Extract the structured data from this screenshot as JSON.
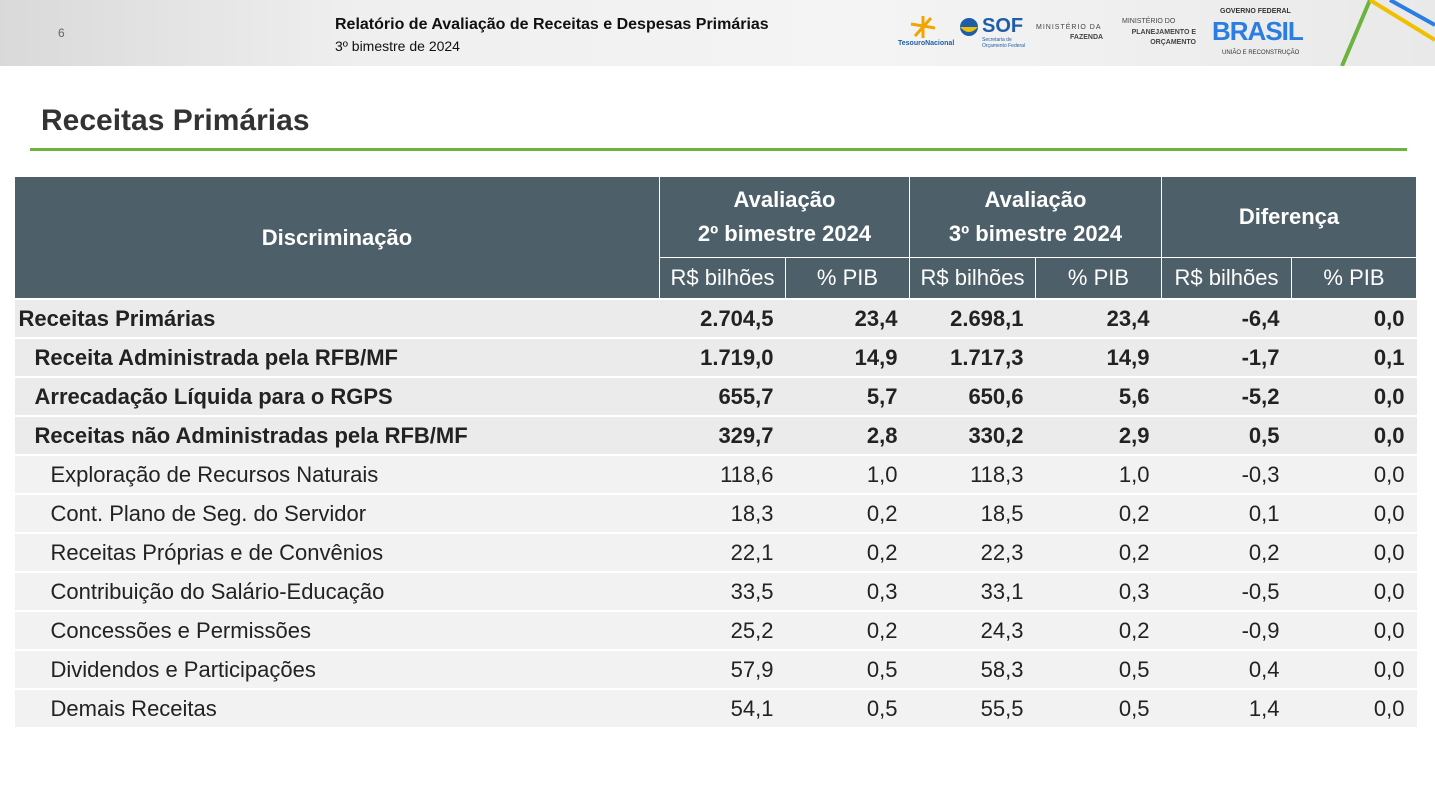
{
  "header": {
    "page_number": "6",
    "title": "Relatório de Avaliação de Receitas e Despesas Primárias",
    "subtitle": "3º bimestre de 2024",
    "logos": {
      "tesouro": "TesouroNacional",
      "sof": "SOF",
      "sof_sub": "Secretaria de Orçamento Federal",
      "fazenda_1": "MINISTÉRIO DA",
      "fazenda_2": "FAZENDA",
      "planejamento_1": "MINISTÉRIO DO",
      "planejamento_2": "PLANEJAMENTO E ORÇAMENTO",
      "governo": "GOVERNO FEDERAL",
      "brasil": "BRASIL",
      "uniao": "UNIÃO E RECONSTRUÇÃO"
    }
  },
  "section_title": "Receitas Primárias",
  "table": {
    "header": {
      "discriminacao": "Discriminação",
      "groups": [
        [
          "Avaliação",
          "2º bimestre 2024"
        ],
        [
          "Avaliação",
          "3º bimestre 2024"
        ],
        [
          "Diferença"
        ]
      ],
      "units": [
        "R$ bilhões",
        "% PIB",
        "R$ bilhões",
        "% PIB",
        "R$ bilhões",
        "% PIB"
      ]
    },
    "rows": [
      [
        "Receitas Primárias",
        "2.704,5",
        "23,4",
        "2.698,1",
        "23,4",
        "-6,4",
        "0,0"
      ],
      [
        "Receita Administrada pela RFB/MF",
        "1.719,0",
        "14,9",
        "1.717,3",
        "14,9",
        "-1,7",
        "0,1"
      ],
      [
        "Arrecadação Líquida para o RGPS",
        "655,7",
        "5,7",
        "650,6",
        "5,6",
        "-5,2",
        "0,0"
      ],
      [
        "Receitas não Administradas pela RFB/MF",
        "329,7",
        "2,8",
        "330,2",
        "2,9",
        "0,5",
        "0,0"
      ],
      [
        "Exploração de Recursos Naturais",
        "118,6",
        "1,0",
        "118,3",
        "1,0",
        "-0,3",
        "0,0"
      ],
      [
        "Cont. Plano de Seg. do Servidor",
        "18,3",
        "0,2",
        "18,5",
        "0,2",
        "0,1",
        "0,0"
      ],
      [
        "Receitas Próprias e de Convênios",
        "22,1",
        "0,2",
        "22,3",
        "0,2",
        "0,2",
        "0,0"
      ],
      [
        "Contribuição do Salário-Educação",
        "33,5",
        "0,3",
        "33,1",
        "0,3",
        "-0,5",
        "0,0"
      ],
      [
        "Concessões e Permissões",
        "25,2",
        "0,2",
        "24,3",
        "0,2",
        "-0,9",
        "0,0"
      ],
      [
        "Dividendos e Participações",
        "57,9",
        "0,5",
        "58,3",
        "0,5",
        "0,4",
        "0,0"
      ],
      [
        "Demais Receitas",
        "54,1",
        "0,5",
        "55,5",
        "0,5",
        "1,4",
        "0,0"
      ]
    ]
  }
}
